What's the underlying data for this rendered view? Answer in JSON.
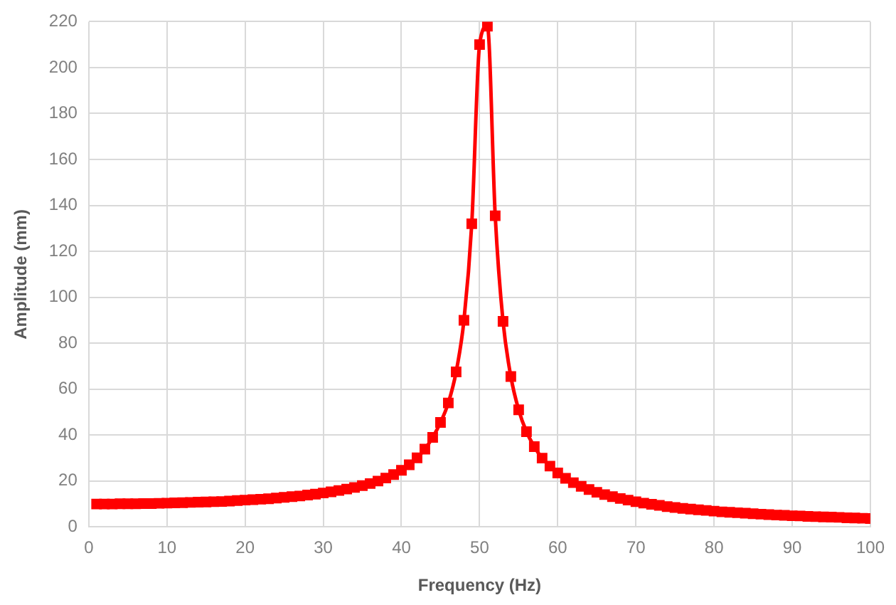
{
  "chart_data": {
    "type": "line",
    "xlabel": "Frequency (Hz)",
    "ylabel": "Amplitude (mm)",
    "x": [
      1,
      2,
      3,
      4,
      5,
      6,
      7,
      8,
      9,
      10,
      11,
      12,
      13,
      14,
      15,
      16,
      17,
      18,
      19,
      20,
      21,
      22,
      23,
      24,
      25,
      26,
      27,
      28,
      29,
      30,
      31,
      32,
      33,
      34,
      35,
      36,
      37,
      38,
      39,
      40,
      41,
      42,
      43,
      44,
      45,
      46,
      47,
      48,
      49,
      50,
      51,
      52,
      53,
      54,
      55,
      56,
      57,
      58,
      59,
      60,
      61,
      62,
      63,
      64,
      65,
      66,
      67,
      68,
      69,
      70,
      71,
      72,
      73,
      74,
      75,
      76,
      77,
      78,
      79,
      80,
      81,
      82,
      83,
      84,
      85,
      86,
      87,
      88,
      89,
      90,
      91,
      92,
      93,
      94,
      95,
      96,
      97,
      98,
      99,
      100
    ],
    "series": [
      {
        "color": "#ff0000",
        "values": [
          10.0,
          10.0,
          10.0,
          10.1,
          10.1,
          10.1,
          10.2,
          10.2,
          10.3,
          10.4,
          10.5,
          10.6,
          10.7,
          10.8,
          10.9,
          11.0,
          11.1,
          11.3,
          11.5,
          11.7,
          11.9,
          12.1,
          12.3,
          12.6,
          12.9,
          13.2,
          13.5,
          13.9,
          14.3,
          14.8,
          15.3,
          15.9,
          16.5,
          17.2,
          18.0,
          18.9,
          20.0,
          21.3,
          22.8,
          24.7,
          27.1,
          30.1,
          33.9,
          39.0,
          45.5,
          54.0,
          67.5,
          90.0,
          132,
          210,
          218,
          135.5,
          89.5,
          65.5,
          51,
          41.5,
          35,
          30,
          26.5,
          23.5,
          21.2,
          19.3,
          17.7,
          16.3,
          15.1,
          14.1,
          13.2,
          12.4,
          11.7,
          11.0,
          10.4,
          9.9,
          9.4,
          8.9,
          8.5,
          8.1,
          7.8,
          7.5,
          7.2,
          6.9,
          6.6,
          6.4,
          6.2,
          6.0,
          5.8,
          5.6,
          5.4,
          5.2,
          5.1,
          4.9,
          4.8,
          4.6,
          4.5,
          4.4,
          4.3,
          4.2,
          4.0,
          3.9,
          3.8,
          3.7
        ]
      }
    ],
    "xlim": [
      0,
      100
    ],
    "xticks": [
      0,
      10,
      20,
      30,
      40,
      50,
      60,
      70,
      80,
      90,
      100
    ],
    "ylim": [
      0,
      220
    ],
    "yticks": [
      0,
      20,
      40,
      60,
      80,
      100,
      120,
      140,
      160,
      180,
      200,
      220
    ],
    "grid": true,
    "legend": false,
    "marker": "square",
    "line_style": "solid"
  }
}
